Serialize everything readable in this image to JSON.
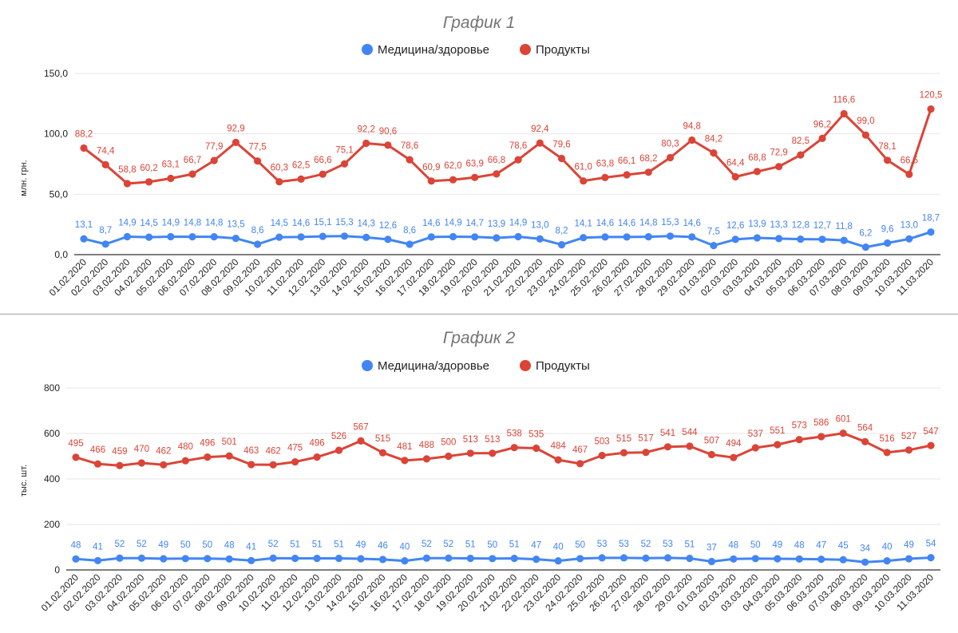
{
  "chart_data": [
    {
      "type": "line",
      "title": "График 1",
      "xlabel": "",
      "ylabel": "млн. грн.",
      "ylim": [
        0,
        150
      ],
      "yticks": [
        "0,0",
        "50,0",
        "100,0",
        "150,0"
      ],
      "grid": true,
      "legend_position": "top",
      "categories": [
        "01.02.2020",
        "02.02.2020",
        "03.02.2020",
        "04.02.2020",
        "05.02.2020",
        "06.02.2020",
        "07.02.2020",
        "08.02.2020",
        "09.02.2020",
        "10.02.2020",
        "11.02.2020",
        "12.02.2020",
        "13.02.2020",
        "14.02.2020",
        "15.02.2020",
        "16.02.2020",
        "17.02.2020",
        "18.02.2020",
        "19.02.2020",
        "20.02.2020",
        "21.02.2020",
        "22.02.2020",
        "23.02.2020",
        "24.02.2020",
        "25.02.2020",
        "26.02.2020",
        "27.02.2020",
        "28.02.2020",
        "29.02.2020",
        "01.03.2020",
        "02.03.2020",
        "03.03.2020",
        "04.03.2020",
        "05.03.2020",
        "06.03.2020",
        "07.03.2020",
        "08.03.2020",
        "09.03.2020",
        "10.03.2020",
        "11.03.2020"
      ],
      "series": [
        {
          "name": "Медицина/здоровье",
          "color": "#4285f4",
          "values": [
            13.1,
            8.7,
            14.9,
            14.5,
            14.9,
            14.8,
            14.8,
            13.5,
            8.6,
            14.5,
            14.6,
            15.1,
            15.3,
            14.3,
            12.6,
            8.6,
            14.6,
            14.9,
            14.7,
            13.9,
            14.9,
            13.0,
            8.2,
            14.1,
            14.6,
            14.6,
            14.8,
            15.3,
            14.6,
            7.5,
            12.6,
            13.9,
            13.3,
            12.8,
            12.7,
            11.8,
            6.2,
            9.6,
            13.0,
            18.7
          ],
          "labels": [
            "13,1",
            "8,7",
            "14,9",
            "14,5",
            "14,9",
            "14,8",
            "14,8",
            "13,5",
            "8,6",
            "14,5",
            "14,6",
            "15,1",
            "15,3",
            "14,3",
            "12,6",
            "8,6",
            "14,6",
            "14,9",
            "14,7",
            "13,9",
            "14,9",
            "13,0",
            "8,2",
            "14,1",
            "14,6",
            "14,6",
            "14,8",
            "15,3",
            "14,6",
            "7,5",
            "12,6",
            "13,9",
            "13,3",
            "12,8",
            "12,7",
            "11,8",
            "6,2",
            "9,6",
            "13,0",
            "18,7"
          ]
        },
        {
          "name": "Продукты",
          "color": "#db4437",
          "values": [
            88.2,
            74.4,
            58.8,
            60.2,
            63.1,
            66.7,
            77.9,
            92.9,
            77.5,
            60.3,
            62.5,
            66.6,
            75.1,
            92.2,
            90.6,
            78.6,
            60.9,
            62.0,
            63.9,
            66.8,
            78.6,
            92.4,
            79.6,
            61.0,
            63.8,
            66.1,
            68.2,
            80.3,
            94.8,
            84.2,
            64.4,
            68.8,
            72.9,
            82.5,
            96.2,
            116.6,
            99.0,
            78.1,
            66.5,
            120.5
          ],
          "labels": [
            "88,2",
            "74,4",
            "58,8",
            "60,2",
            "63,1",
            "66,7",
            "77,9",
            "92,9",
            "77,5",
            "60,3",
            "62,5",
            "66,6",
            "75,1",
            "92,2",
            "90,6",
            "78,6",
            "60,9",
            "62,0",
            "63,9",
            "66,8",
            "78,6",
            "92,4",
            "79,6",
            "61,0",
            "63,8",
            "66,1",
            "68,2",
            "80,3",
            "94,8",
            "84,2",
            "64,4",
            "68,8",
            "72,9",
            "82,5",
            "96,2",
            "116,6",
            "99,0",
            "78,1",
            "66,5",
            "120,5"
          ]
        }
      ]
    },
    {
      "type": "line",
      "title": "График 2",
      "xlabel": "",
      "ylabel": "тыс. шт.",
      "ylim": [
        0,
        800
      ],
      "yticks": [
        "0",
        "200",
        "400",
        "600",
        "800"
      ],
      "grid": true,
      "legend_position": "top",
      "categories": [
        "01.02.2020",
        "02.02.2020",
        "03.02.2020",
        "04.02.2020",
        "05.02.2020",
        "06.02.2020",
        "07.02.2020",
        "08.02.2020",
        "09.02.2020",
        "10.02.2020",
        "11.02.2020",
        "12.02.2020",
        "13.02.2020",
        "14.02.2020",
        "15.02.2020",
        "16.02.2020",
        "17.02.2020",
        "18.02.2020",
        "19.02.2020",
        "20.02.2020",
        "21.02.2020",
        "22.02.2020",
        "23.02.2020",
        "24.02.2020",
        "25.02.2020",
        "26.02.2020",
        "27.02.2020",
        "28.02.2020",
        "29.02.2020",
        "01.03.2020",
        "02.03.2020",
        "03.03.2020",
        "04.03.2020",
        "05.03.2020",
        "06.03.2020",
        "07.03.2020",
        "08.03.2020",
        "09.03.2020",
        "10.03.2020",
        "11.03.2020"
      ],
      "series": [
        {
          "name": "Медицина/здоровье",
          "color": "#4285f4",
          "values": [
            48,
            41,
            52,
            52,
            49,
            50,
            50,
            48,
            41,
            52,
            51,
            51,
            51,
            49,
            46,
            40,
            52,
            52,
            51,
            50,
            51,
            47,
            40,
            50,
            53,
            53,
            52,
            53,
            51,
            37,
            48,
            50,
            49,
            48,
            47,
            45,
            34,
            40,
            49,
            54
          ],
          "labels": [
            "48",
            "41",
            "52",
            "52",
            "49",
            "50",
            "50",
            "48",
            "41",
            "52",
            "51",
            "51",
            "51",
            "49",
            "46",
            "40",
            "52",
            "52",
            "51",
            "50",
            "51",
            "47",
            "40",
            "50",
            "53",
            "53",
            "52",
            "53",
            "51",
            "37",
            "48",
            "50",
            "49",
            "48",
            "47",
            "45",
            "34",
            "40",
            "49",
            "54"
          ]
        },
        {
          "name": "Продукты",
          "color": "#db4437",
          "values": [
            495,
            466,
            459,
            470,
            462,
            480,
            496,
            501,
            463,
            462,
            475,
            496,
            526,
            567,
            515,
            481,
            488,
            500,
            513,
            513,
            538,
            535,
            484,
            467,
            503,
            515,
            517,
            541,
            544,
            507,
            494,
            537,
            551,
            573,
            586,
            601,
            564,
            516,
            527,
            547
          ],
          "labels": [
            "495",
            "466",
            "459",
            "470",
            "462",
            "480",
            "496",
            "501",
            "463",
            "462",
            "475",
            "496",
            "526",
            "567",
            "515",
            "481",
            "488",
            "500",
            "513",
            "513",
            "538",
            "535",
            "484",
            "467",
            "503",
            "515",
            "517",
            "541",
            "544",
            "507",
            "494",
            "537",
            "551",
            "573",
            "586",
            "601",
            "564",
            "516",
            "527",
            "547"
          ]
        }
      ]
    }
  ]
}
